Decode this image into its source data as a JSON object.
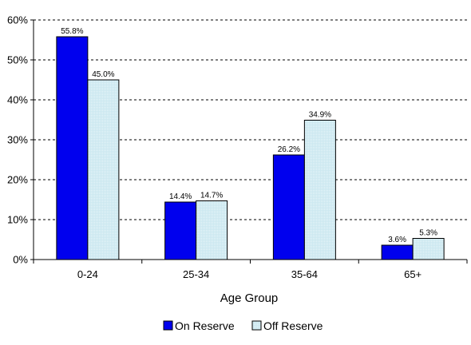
{
  "chart_data": {
    "type": "bar",
    "title": "",
    "xlabel": "Age Group",
    "ylabel": "",
    "categories": [
      "0-24",
      "25-34",
      "35-64",
      "65+"
    ],
    "series": [
      {
        "name": "On Reserve",
        "color": "#0000ee",
        "values": [
          55.8,
          14.4,
          26.2,
          3.6
        ],
        "labels": [
          "55.8%",
          "14.4%",
          "26.2%",
          "3.6%"
        ]
      },
      {
        "name": "Off Reserve",
        "color": "#cce8f0",
        "values": [
          45.0,
          14.7,
          34.9,
          5.3
        ],
        "labels": [
          "45.0%",
          "14.7%",
          "34.9%",
          "5.3%"
        ]
      }
    ],
    "ylim": [
      0,
      60
    ],
    "yticks": [
      0,
      10,
      20,
      30,
      40,
      50,
      60
    ],
    "ytick_labels": [
      "0%",
      "10%",
      "20%",
      "30%",
      "40%",
      "50%",
      "60%"
    ],
    "grid": true,
    "legend_position": "bottom"
  }
}
